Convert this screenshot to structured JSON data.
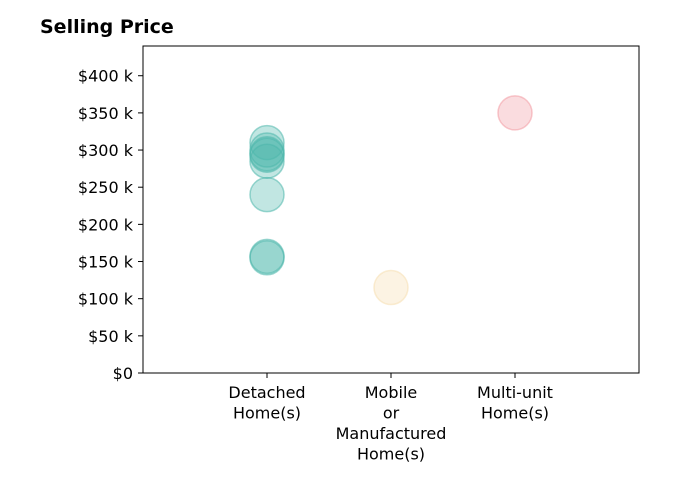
{
  "chart_data": {
    "type": "scatter",
    "title": "Selling Price",
    "xlabel": "",
    "ylabel": "",
    "categories": [
      [
        "Detached",
        "Home(s)"
      ],
      [
        "Mobile",
        "or",
        "Manufactured",
        "Home(s)"
      ],
      [
        "Multi-unit",
        "Home(s)"
      ]
    ],
    "xlim": [
      -1,
      3
    ],
    "ylim": [
      0,
      440000
    ],
    "y_ticks": [
      0,
      50000,
      100000,
      150000,
      200000,
      250000,
      300000,
      350000,
      400000
    ],
    "y_tick_labels": [
      "$0",
      "$50 k",
      "$100 k",
      "$150 k",
      "$200 k",
      "$250 k",
      "$300 k",
      "$350 k",
      "$400 k"
    ],
    "grid": false,
    "legend": "none",
    "colors": {
      "detached": "#4db6ac",
      "mobile": "#f5deb0",
      "multi": "#f29ba3"
    },
    "series": [
      {
        "category": 0,
        "color": "#4db6ac",
        "y": [
          310000,
          300000,
          295000,
          293000,
          285000,
          240000,
          157000,
          155000
        ]
      },
      {
        "category": 1,
        "color": "#f5deb0",
        "y": [
          115000
        ]
      },
      {
        "category": 2,
        "color": "#f29ba3",
        "y": [
          350000
        ]
      }
    ]
  }
}
